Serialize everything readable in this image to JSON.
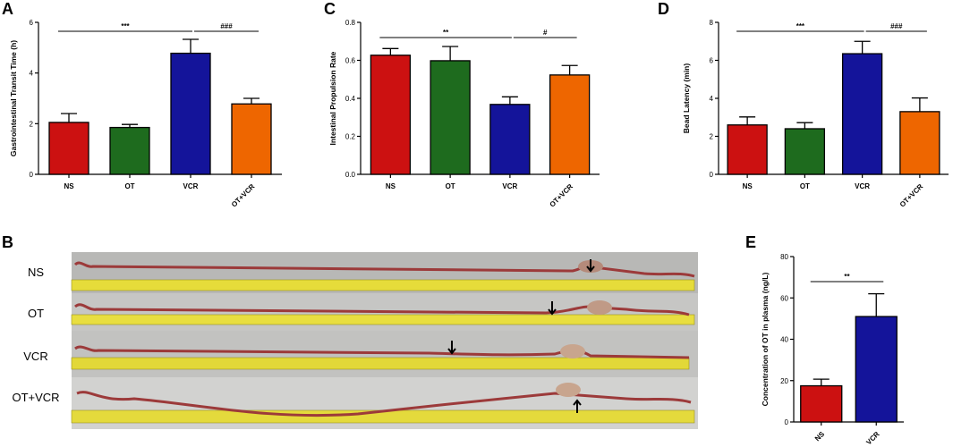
{
  "panels": {
    "A": {
      "letter": "A"
    },
    "B": {
      "letter": "B",
      "rows": [
        "NS",
        "OT",
        "VCR",
        "OT+VCR"
      ]
    },
    "C": {
      "letter": "C"
    },
    "D": {
      "letter": "D"
    },
    "E": {
      "letter": "E"
    }
  },
  "colors": {
    "NS": "#cc1111",
    "OT": "#1e6b1e",
    "VCR": "#14149a",
    "OT+VCR": "#ee6600"
  },
  "chart_data": [
    {
      "id": "A",
      "type": "bar",
      "categories": [
        "NS",
        "OT",
        "VCR",
        "OT+VCR"
      ],
      "values": [
        2.05,
        1.85,
        4.78,
        2.78
      ],
      "errors": [
        0.35,
        0.12,
        0.55,
        0.22
      ],
      "ylabel": "Gastrointestinal Transit Time (h)",
      "ylim": [
        0,
        6
      ],
      "yticks": [
        "0",
        "2",
        "4",
        "6"
      ],
      "brackets": [
        {
          "from": 0,
          "to": 2,
          "label": "***"
        },
        {
          "from": 2,
          "to": 3,
          "label": "###"
        }
      ]
    },
    {
      "id": "C",
      "type": "bar",
      "categories": [
        "NS",
        "OT",
        "VCR",
        "OT+VCR"
      ],
      "values": [
        0.627,
        0.598,
        0.368,
        0.523
      ],
      "errors": [
        0.035,
        0.075,
        0.04,
        0.05
      ],
      "ylabel": "Intestinal Propulsion Rate",
      "ylim": [
        0,
        0.8
      ],
      "yticks": [
        "0.0",
        "0.2",
        "0.4",
        "0.6",
        "0.8"
      ],
      "brackets": [
        {
          "from": 0,
          "to": 2,
          "label": "**"
        },
        {
          "from": 2,
          "to": 3,
          "label": "#"
        }
      ]
    },
    {
      "id": "D",
      "type": "bar",
      "categories": [
        "NS",
        "OT",
        "VCR",
        "OT+VCR"
      ],
      "values": [
        2.6,
        2.4,
        6.35,
        3.3
      ],
      "errors": [
        0.42,
        0.32,
        0.65,
        0.72
      ],
      "ylabel": "Bead Latency (min)",
      "ylim": [
        0,
        8
      ],
      "yticks": [
        "0",
        "2",
        "4",
        "6",
        "8"
      ],
      "brackets": [
        {
          "from": 0,
          "to": 2,
          "label": "***"
        },
        {
          "from": 2,
          "to": 3,
          "label": "###"
        }
      ]
    },
    {
      "id": "E",
      "type": "bar",
      "categories": [
        "NS",
        "VCR"
      ],
      "values": [
        17.5,
        51.0
      ],
      "errors": [
        3.2,
        11.0
      ],
      "ylabel": "Concentration of OT in plasma (ng/L)",
      "ylim": [
        0,
        80
      ],
      "yticks": [
        "0",
        "20",
        "40",
        "60",
        "80"
      ],
      "brackets": [
        {
          "from": 0,
          "to": 1,
          "label": "**"
        }
      ]
    }
  ]
}
